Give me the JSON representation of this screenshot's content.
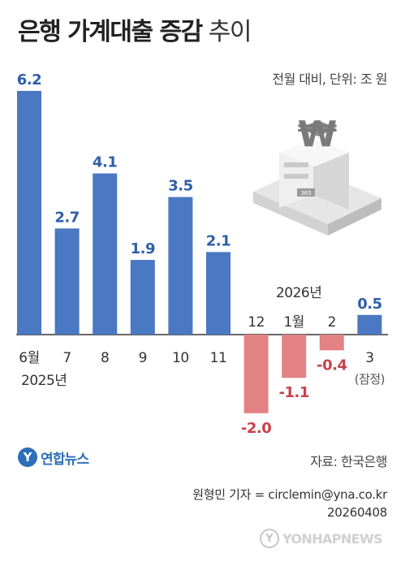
{
  "header": {
    "title_bold": "은행 가계대출 증감",
    "title_light": "추이",
    "unit_note": "전월 대비, 단위: 조 원"
  },
  "chart_data": {
    "type": "bar",
    "categories": [
      "6월",
      "7",
      "8",
      "9",
      "10",
      "11",
      "12",
      "1월",
      "2",
      "3"
    ],
    "values": [
      6.2,
      2.7,
      4.1,
      1.9,
      3.5,
      2.1,
      -2.0,
      -1.1,
      -0.4,
      0.5
    ],
    "value_labels": [
      "6.2",
      "2.7",
      "4.1",
      "1.9",
      "3.5",
      "2.1",
      "-2.0",
      "-1.1",
      "-0.4",
      "0.5"
    ],
    "year_labels": [
      {
        "text": "2025년",
        "category_index": 0
      },
      {
        "text": "2026년",
        "category_index": 7
      }
    ],
    "annotations": [
      {
        "text": "(잠정)",
        "category_index": 9
      }
    ],
    "colors": {
      "positive": "#4a78c2",
      "negative": "#e28284",
      "label_positive": "#2e5fa8",
      "label_negative": "#c8414a"
    },
    "ylim": [
      -2.5,
      6.7
    ]
  },
  "footer": {
    "source": "자료: 한국은행",
    "credit_line": "원형민 기자 = circlemin@yna.co.kr",
    "date_code": "20260408",
    "logo_text": "연합뉴스",
    "watermark_text": "YONHAPNEWS"
  },
  "illustration": {
    "icon": "bank-building-won-icon",
    "sign_text": "₩",
    "door_text": "365"
  }
}
